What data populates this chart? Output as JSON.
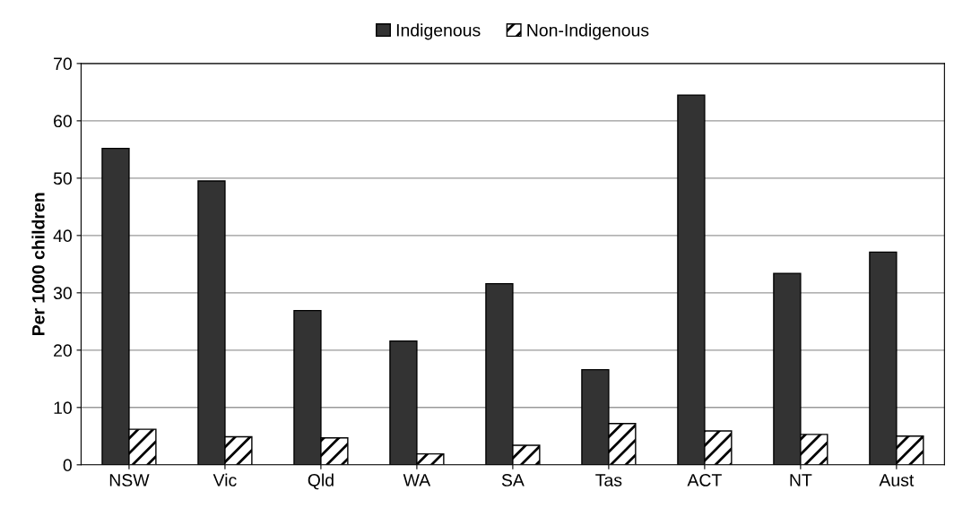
{
  "chart_data": {
    "type": "bar",
    "ylabel": "Per 1000 children",
    "categories": [
      "NSW",
      "Vic",
      "Qld",
      "WA",
      "SA",
      "Tas",
      "ACT",
      "NT",
      "Aust"
    ],
    "series": [
      {
        "name": "Indigenous",
        "color": "#333333",
        "values": [
          55.2,
          49.5,
          26.9,
          21.6,
          31.6,
          16.6,
          64.5,
          33.4,
          37.1
        ]
      },
      {
        "name": "Non-Indigenous",
        "color": "#ffffff",
        "values": [
          6.2,
          4.9,
          4.7,
          1.9,
          3.4,
          7.2,
          5.9,
          5.3,
          5.0
        ]
      }
    ],
    "ylim": [
      0,
      70
    ],
    "yticks": [
      0,
      10,
      20,
      30,
      40,
      50,
      60,
      70
    ],
    "grid": "y",
    "legend": "top"
  }
}
